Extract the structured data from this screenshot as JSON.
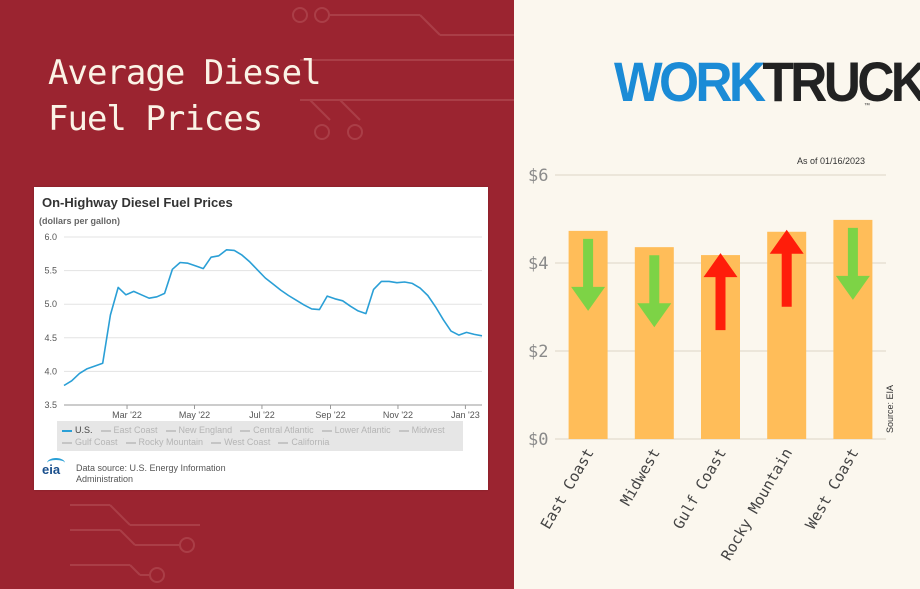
{
  "headline": {
    "line1": "Average Diesel",
    "line2": "Fuel Prices"
  },
  "eia_panel": {
    "title": "On-Highway Diesel Fuel Prices",
    "subtitle": "(dollars per gallon)",
    "legend_row1": [
      "U.S.",
      "East Coast",
      "New England",
      "Central Atlantic",
      "Lower Atlantic",
      "Midwest"
    ],
    "legend_row2": [
      "Gulf Coast",
      "Rocky Mountain",
      "West Coast",
      "California"
    ],
    "logo_text": "eia",
    "source_line1": "Data source: U.S. Energy Information",
    "source_line2": "Administration"
  },
  "brand": {
    "part1": "WORK",
    "part2": "TRUCK",
    "tm": "™"
  },
  "as_of": "As of 01/16/2023",
  "chart_data": [
    {
      "type": "line",
      "title": "On-Highway Diesel Fuel Prices",
      "ylabel": "(dollars per gallon)",
      "xlabel": "",
      "ylim": [
        3.5,
        6.0
      ],
      "y_ticks": [
        3.5,
        4.0,
        4.5,
        5.0,
        5.5,
        6.0
      ],
      "y_tick_labels": [
        "3.5",
        "4.0",
        "4.5",
        "5.0",
        "5.5",
        "6.0"
      ],
      "x_ticks": [
        "2022-03-01",
        "2022-05-01",
        "2022-07-01",
        "2022-09-01",
        "2022-11-01",
        "2023-01-01"
      ],
      "x_tick_labels": [
        "Mar '22",
        "May '22",
        "Jul '22",
        "Sep '22",
        "Nov '22",
        "Jan '23"
      ],
      "x_range": [
        "2022-01-03",
        "2023-01-16"
      ],
      "grid": true,
      "legend_position": "bottom",
      "series": [
        {
          "name": "U.S.",
          "color": "#2a9fd6",
          "x": [
            "2022-01-03",
            "2022-01-10",
            "2022-01-17",
            "2022-01-24",
            "2022-01-31",
            "2022-02-07",
            "2022-02-14",
            "2022-02-21",
            "2022-02-28",
            "2022-03-07",
            "2022-03-14",
            "2022-03-21",
            "2022-03-28",
            "2022-04-04",
            "2022-04-11",
            "2022-04-18",
            "2022-04-25",
            "2022-05-02",
            "2022-05-09",
            "2022-05-16",
            "2022-05-23",
            "2022-05-30",
            "2022-06-06",
            "2022-06-13",
            "2022-06-20",
            "2022-06-27",
            "2022-07-04",
            "2022-07-11",
            "2022-07-18",
            "2022-07-25",
            "2022-08-01",
            "2022-08-08",
            "2022-08-15",
            "2022-08-22",
            "2022-08-29",
            "2022-09-05",
            "2022-09-12",
            "2022-09-19",
            "2022-09-26",
            "2022-10-03",
            "2022-10-10",
            "2022-10-17",
            "2022-10-24",
            "2022-10-31",
            "2022-11-07",
            "2022-11-14",
            "2022-11-21",
            "2022-11-28",
            "2022-12-05",
            "2022-12-12",
            "2022-12-19",
            "2022-12-26",
            "2023-01-02",
            "2023-01-09",
            "2023-01-16"
          ],
          "values": [
            3.79,
            3.86,
            3.97,
            4.04,
            4.08,
            4.12,
            4.84,
            5.25,
            5.14,
            5.19,
            5.14,
            5.09,
            5.11,
            5.16,
            5.52,
            5.62,
            5.61,
            5.57,
            5.53,
            5.7,
            5.72,
            5.81,
            5.8,
            5.73,
            5.63,
            5.51,
            5.39,
            5.3,
            5.21,
            5.13,
            5.06,
            4.99,
            4.93,
            4.92,
            5.12,
            5.08,
            5.05,
            4.97,
            4.9,
            4.86,
            5.22,
            5.34,
            5.34,
            5.32,
            5.33,
            5.31,
            5.24,
            5.13,
            4.96,
            4.77,
            4.6,
            4.54,
            4.58,
            4.55,
            4.53
          ]
        }
      ]
    },
    {
      "type": "bar",
      "title": "",
      "xlabel": "",
      "ylabel": "",
      "categories": [
        "East Coast",
        "Midwest",
        "Gulf Coast",
        "Rocky Mountain",
        "West Coast"
      ],
      "values": [
        4.73,
        4.36,
        4.18,
        4.71,
        4.98
      ],
      "ylim": [
        0,
        6
      ],
      "y_ticks": [
        0,
        2,
        4,
        6
      ],
      "y_tick_labels": [
        "$0",
        "$2",
        "$4",
        "$6"
      ],
      "grid": true,
      "bar_color": "#ffbd59",
      "trend": [
        "down",
        "down",
        "up",
        "up",
        "down"
      ],
      "trend_colors": {
        "down": "#7dd346",
        "up": "#ff1d0a"
      },
      "annotation": "As of 01/16/2023",
      "source_label": "Source: EIA"
    }
  ]
}
